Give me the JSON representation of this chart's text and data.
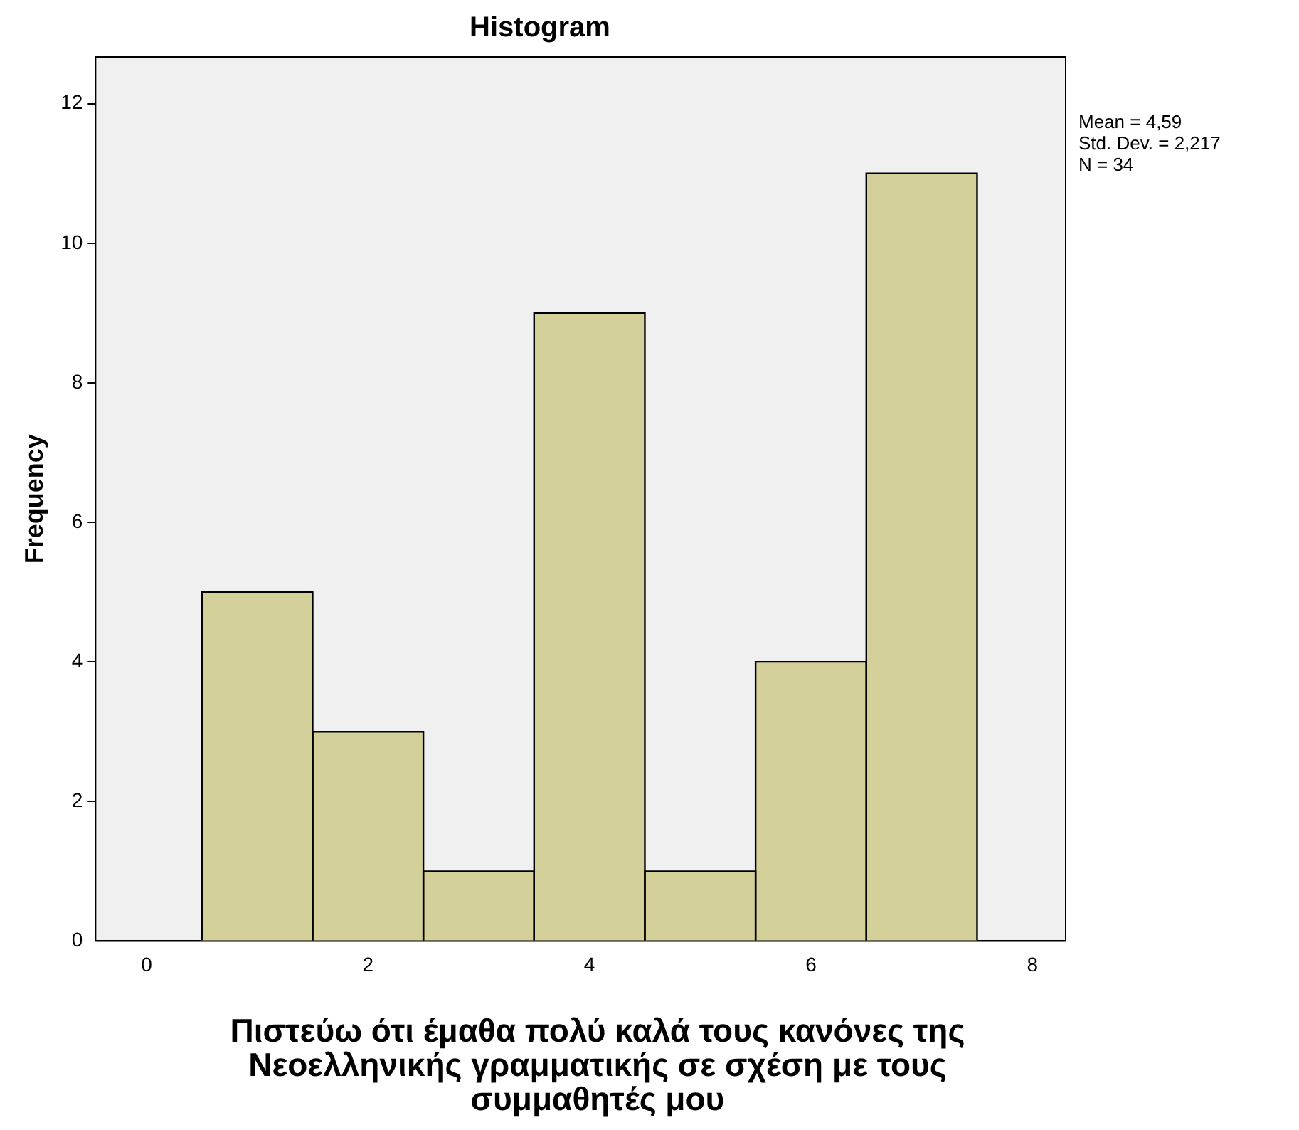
{
  "chart_data": {
    "type": "histogram",
    "title": "Histogram",
    "xlabel": "Πιστεύω ότι έμαθα πολύ καλά τους κανόνες της Νεοελληνικής γραμματικής σε σχέση με τους συμμαθητές μου",
    "ylabel": "Frequency",
    "bins": [
      0.5,
      1.5,
      2.5,
      3.5,
      4.5,
      5.5,
      6.5,
      7.5
    ],
    "values": [
      5,
      3,
      1,
      9,
      1,
      4,
      11
    ],
    "color": "#d4d09a",
    "xlim": [
      -0.46,
      8.3
    ],
    "xticks": [
      0,
      2,
      4,
      6,
      8
    ],
    "ylim": [
      0,
      12.67
    ],
    "yticks": [
      0,
      2,
      4,
      6,
      8,
      10,
      12
    ],
    "grid": false,
    "legend": false,
    "annotations": [
      "Mean = 4,59",
      "Std. Dev. = 2,217",
      "N = 34"
    ]
  }
}
